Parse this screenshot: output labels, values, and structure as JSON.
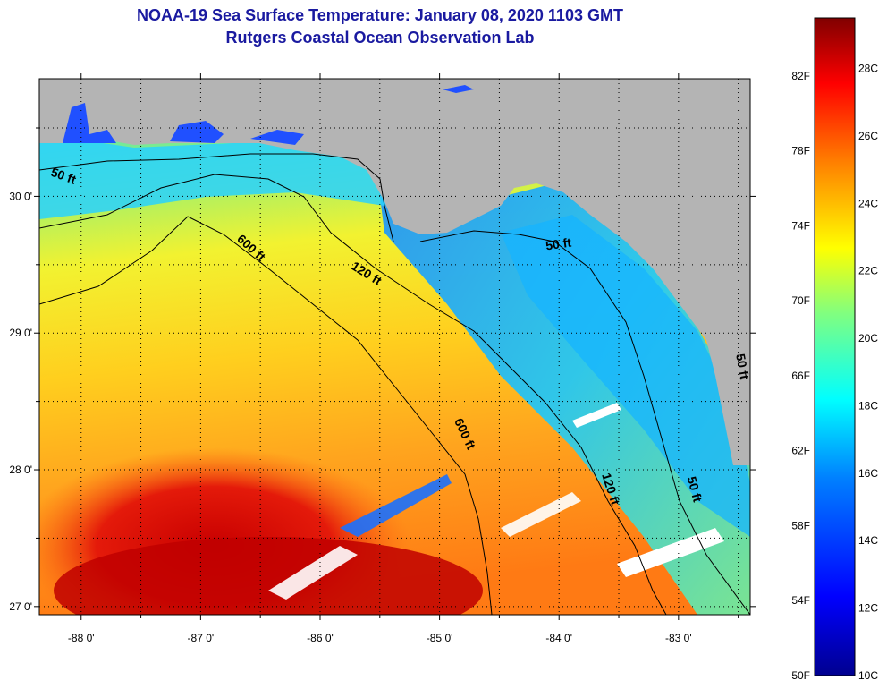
{
  "title_line1": "NOAA-19 Sea Surface Temperature:  January 08, 2020 1103 GMT",
  "title_line2": "Rutgers Coastal Ocean Observation Lab",
  "map": {
    "lon_range": [
      -88.35,
      -82.4
    ],
    "lat_range": [
      26.94,
      30.86
    ],
    "lon_ticks": [
      {
        "value": -88,
        "label": "-88 0'"
      },
      {
        "value": -87,
        "label": "-87 0'"
      },
      {
        "value": -86,
        "label": "-86 0'"
      },
      {
        "value": -85,
        "label": "-85 0'"
      },
      {
        "value": -84,
        "label": "-84 0'"
      },
      {
        "value": -83,
        "label": "-83 0'"
      }
    ],
    "lat_ticks": [
      {
        "value": 27,
        "label": "27 0'"
      },
      {
        "value": 28,
        "label": "28 0'"
      },
      {
        "value": 29,
        "label": "29 0'"
      },
      {
        "value": 30,
        "label": "30 0'"
      }
    ],
    "grid": "dotted",
    "land_color": "#b4b4b4",
    "contour_labels": [
      {
        "text": "50 ft",
        "lon": -88.16,
        "lat": 30.12,
        "rotate": 20
      },
      {
        "text": "600 ft",
        "lon": -86.6,
        "lat": 29.6,
        "rotate": 42
      },
      {
        "text": "120 ft",
        "lon": -85.63,
        "lat": 29.41,
        "rotate": 32
      },
      {
        "text": "50 ft",
        "lon": -84.0,
        "lat": 29.62,
        "rotate": -8
      },
      {
        "text": "600 ft",
        "lon": -84.82,
        "lat": 28.25,
        "rotate": 65
      },
      {
        "text": "120 ft",
        "lon": -83.6,
        "lat": 27.85,
        "rotate": 72
      },
      {
        "text": "50 ft",
        "lon": -82.9,
        "lat": 27.85,
        "rotate": 75
      },
      {
        "text": "50 ft",
        "lon": -82.5,
        "lat": 28.75,
        "rotate": 80
      }
    ]
  },
  "colorbar": {
    "min_c": 10,
    "max_c": 29.5,
    "labels_c": [
      {
        "value": 28,
        "label": "28C"
      },
      {
        "value": 26,
        "label": "26C"
      },
      {
        "value": 24,
        "label": "24C"
      },
      {
        "value": 22,
        "label": "22C"
      },
      {
        "value": 20,
        "label": "20C"
      },
      {
        "value": 18,
        "label": "18C"
      },
      {
        "value": 16,
        "label": "16C"
      },
      {
        "value": 14,
        "label": "14C"
      },
      {
        "value": 12,
        "label": "12C"
      },
      {
        "value": 10,
        "label": "10C"
      }
    ],
    "labels_f": [
      {
        "value": 82,
        "label": "82F"
      },
      {
        "value": 78,
        "label": "78F"
      },
      {
        "value": 74,
        "label": "74F"
      },
      {
        "value": 70,
        "label": "70F"
      },
      {
        "value": 66,
        "label": "66F"
      },
      {
        "value": 62,
        "label": "62F"
      },
      {
        "value": 58,
        "label": "58F"
      },
      {
        "value": 54,
        "label": "54F"
      },
      {
        "value": 50,
        "label": "50F"
      }
    ],
    "colors": [
      "#00008f",
      "#0000ff",
      "#0080ff",
      "#00ffff",
      "#80ff80",
      "#ffff00",
      "#ff8000",
      "#ff0000",
      "#800000"
    ]
  }
}
